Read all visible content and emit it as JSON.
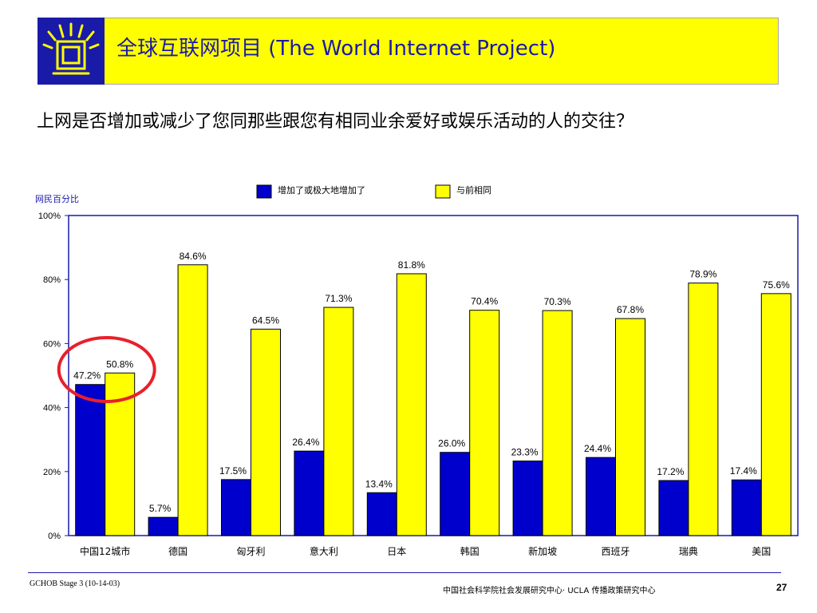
{
  "header": {
    "title": "全球互联网项目 (The World Internet Project)",
    "bar_color": "#ffff00",
    "title_color": "#1a1aa8"
  },
  "question": "上网是否增加或减少了您同那些跟您有相同业余爱好或娱乐活动的人的交往？",
  "chart_data": {
    "type": "bar",
    "title": "",
    "xlabel": "",
    "ylabel": "网民百分比",
    "ylim": [
      0,
      100
    ],
    "yticks": [
      "0%",
      "20%",
      "40%",
      "60%",
      "80%",
      "100%"
    ],
    "categories": [
      "中国12城市",
      "德国",
      "匈牙利",
      "意大利",
      "日本",
      "韩国",
      "新加坡",
      "西班牙",
      "瑞典",
      "美国"
    ],
    "series": [
      {
        "name": "增加了或极大地增加了",
        "color": "#0000cc",
        "values": [
          47.2,
          5.7,
          17.5,
          26.4,
          13.4,
          26.0,
          23.3,
          24.4,
          17.2,
          17.4
        ],
        "labels": [
          "47.2%",
          "5.7%",
          "17.5%",
          "26.4%",
          "13.4%",
          "26.0%",
          "23.3%",
          "24.4%",
          "17.2%",
          "17.4%"
        ]
      },
      {
        "name": "与前相同",
        "color": "#ffff00",
        "values": [
          50.8,
          84.6,
          64.5,
          71.3,
          81.8,
          70.4,
          70.3,
          67.8,
          78.9,
          75.6
        ],
        "labels": [
          "50.8%",
          "84.6%",
          "64.5%",
          "71.3%",
          "81.8%",
          "70.4%",
          "70.3%",
          "67.8%",
          "78.9%",
          "75.6%"
        ]
      }
    ],
    "legend_position": "top",
    "grid": false,
    "highlight": "中国12城市"
  },
  "footer": {
    "left": "GCHOB Stage 3 (10-14-03)",
    "center": "中国社会科学院社会发展研究中心· UCLA 传播政策研究中心",
    "page": "27"
  }
}
